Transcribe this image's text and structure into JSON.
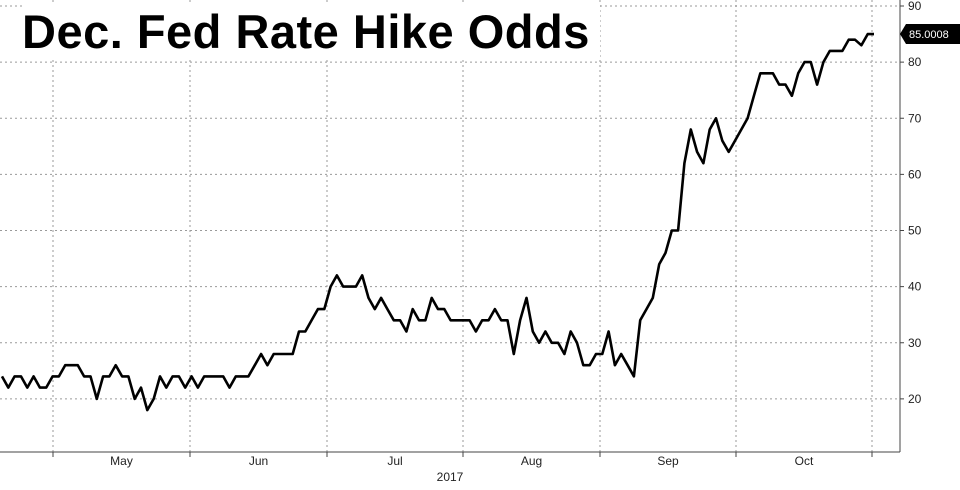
{
  "chart_data": {
    "type": "line",
    "title": "Dec. Fed Rate Hike Odds",
    "xlabel": "2017",
    "ylabel": "",
    "ylim": [
      10,
      90
    ],
    "y_ticks": [
      20,
      30,
      40,
      50,
      60,
      70,
      80,
      90
    ],
    "x_month_labels": [
      "May",
      "Jun",
      "Jul",
      "Aug",
      "Sep",
      "Oct"
    ],
    "grid": true,
    "last_value_label": "85.0008",
    "series": [
      {
        "values": [
          24,
          22,
          24,
          24,
          22,
          24,
          22,
          22,
          24,
          24,
          26,
          26,
          26,
          24,
          24,
          20,
          24,
          24,
          26,
          24,
          24,
          20,
          22,
          18,
          20,
          24,
          22,
          24,
          24,
          22,
          24,
          22,
          24,
          24,
          24,
          24,
          22,
          24,
          24,
          24,
          26,
          28,
          26,
          28,
          28,
          28,
          28,
          32,
          32,
          34,
          36,
          36,
          40,
          42,
          40,
          40,
          40,
          42,
          38,
          36,
          38,
          36,
          34,
          34,
          32,
          36,
          34,
          34,
          38,
          36,
          36,
          34,
          34,
          34,
          34,
          32,
          34,
          34,
          36,
          34,
          34,
          28,
          34,
          38,
          32,
          30,
          32,
          30,
          30,
          28,
          32,
          30,
          26,
          26,
          28,
          28,
          32,
          26,
          28,
          26,
          24,
          34,
          36,
          38,
          44,
          46,
          50,
          50,
          62,
          68,
          64,
          62,
          68,
          70,
          66,
          64,
          66,
          68,
          70,
          74,
          78,
          78,
          78,
          76,
          76,
          74,
          78,
          80,
          80,
          76,
          80,
          82,
          82,
          82,
          84,
          84,
          83,
          85,
          85.0008
        ]
      }
    ],
    "colors": {
      "line": "#000000",
      "grid": "#9a9a9a",
      "last_value_box": "#000000"
    }
  }
}
